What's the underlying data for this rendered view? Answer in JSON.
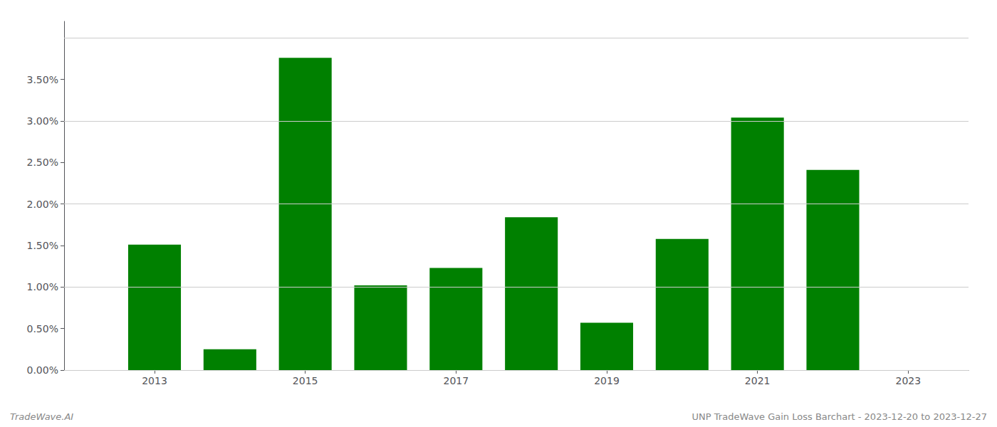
{
  "chart_data": {
    "type": "bar",
    "x": [
      2013,
      2014,
      2015,
      2016,
      2017,
      2018,
      2019,
      2020,
      2021,
      2022
    ],
    "values": [
      0.0151,
      0.0025,
      0.0376,
      0.0102,
      0.0123,
      0.0184,
      0.0057,
      0.0158,
      0.0304,
      0.0241
    ],
    "color": "#008000",
    "xlim": [
      2011.8,
      2023.8
    ],
    "xticks": [
      2013,
      2015,
      2017,
      2019,
      2021,
      2023
    ],
    "ylim": [
      0,
      0.042
    ],
    "yticks": [
      {
        "value": 0.0,
        "label": "0.00%"
      },
      {
        "value": 0.005,
        "label": "0.50%"
      },
      {
        "value": 0.01,
        "label": "1.00%"
      },
      {
        "value": 0.015,
        "label": "1.50%"
      },
      {
        "value": 0.02,
        "label": "2.00%"
      },
      {
        "value": 0.025,
        "label": "2.50%"
      },
      {
        "value": 0.03,
        "label": "3.00%"
      },
      {
        "value": 0.035,
        "label": "3.50%"
      }
    ],
    "grid": true,
    "annotations": [
      "TradeWave.AI",
      "UNP TradeWave Gain Loss Barchart - 2023-12-20 to 2023-12-27"
    ]
  }
}
